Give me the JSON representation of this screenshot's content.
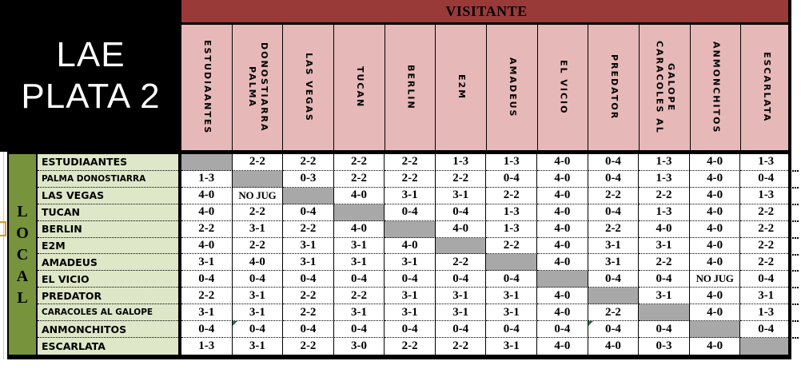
{
  "title": "LAE PLATA 2",
  "axis_labels": {
    "visitante": "VISITANTE",
    "local": "LOCAL"
  },
  "teams": [
    "ESTUDIAANTES",
    "PALMA DONOSTIARRA",
    "LAS VEGAS",
    "TUCAN",
    "BERLIN",
    "E2M",
    "AMADEUS",
    "EL VICIO",
    "PREDATOR",
    "CARACOLES AL GALOPE",
    "ANMONCHITOS",
    "ESCARLATA"
  ],
  "results": {
    "rows": [
      [
        null,
        "2-2",
        "2-2",
        "2-2",
        "2-2",
        "1-3",
        "1-3",
        "4-0",
        "0-4",
        "1-3",
        "4-0",
        "1-3"
      ],
      [
        "1-3",
        null,
        "0-3",
        "2-2",
        "2-2",
        "2-2",
        "0-4",
        "4-0",
        "0-4",
        "1-3",
        "4-0",
        "0-4"
      ],
      [
        "4-0",
        "NO JUG",
        null,
        "4-0",
        "3-1",
        "3-1",
        "2-2",
        "4-0",
        "2-2",
        "2-2",
        "4-0",
        "1-3"
      ],
      [
        "4-0",
        "2-2",
        "0-4",
        null,
        "0-4",
        "0-4",
        "1-3",
        "4-0",
        "0-4",
        "1-3",
        "4-0",
        "2-2"
      ],
      [
        "2-2",
        "3-1",
        "2-2",
        "4-0",
        null,
        "4-0",
        "1-3",
        "4-0",
        "2-2",
        "4-0",
        "4-0",
        "2-2"
      ],
      [
        "4-0",
        "2-2",
        "3-1",
        "3-1",
        "4-0",
        null,
        "2-2",
        "4-0",
        "3-1",
        "3-1",
        "4-0",
        "2-2"
      ],
      [
        "3-1",
        "4-0",
        "3-1",
        "3-1",
        "3-1",
        "2-2",
        null,
        "4-0",
        "3-1",
        "2-2",
        "4-0",
        "2-2"
      ],
      [
        "0-4",
        "0-4",
        "0-4",
        "0-4",
        "0-4",
        "0-4",
        "0-4",
        null,
        "0-4",
        "0-4",
        "NO JUG",
        "0-4"
      ],
      [
        "2-2",
        "3-1",
        "2-2",
        "2-2",
        "3-1",
        "3-1",
        "3-1",
        "4-0",
        null,
        "3-1",
        "4-0",
        "3-1"
      ],
      [
        "3-1",
        "3-1",
        "2-2",
        "3-1",
        "3-1",
        "3-1",
        "3-1",
        "4-0",
        "2-2",
        null,
        "4-0",
        "1-3"
      ],
      [
        "0-4",
        "0-4",
        "0-4",
        "0-4",
        "0-4",
        "0-4",
        "0-4",
        "0-4",
        "0-4",
        "0-4",
        null,
        "0-4"
      ],
      [
        "1-3",
        "3-1",
        "2-2",
        "3-0",
        "2-2",
        "2-2",
        "3-1",
        "4-0",
        "4-0",
        "0-3",
        "4-0",
        null
      ]
    ],
    "green_flags": [
      [
        10,
        1
      ],
      [
        10,
        8
      ]
    ],
    "not_played_label": "NO JUG"
  },
  "colors": {
    "visitante_band": "#9A3A38",
    "header_pink": "#E6B9B8",
    "local_strip_green": "#77933C",
    "row_label_green": "#DEE7C8",
    "diagonal_gray": "#A8A8A8",
    "flag_green": "#217346",
    "title_bg": "#000000",
    "title_text": "#FFFFFF"
  }
}
